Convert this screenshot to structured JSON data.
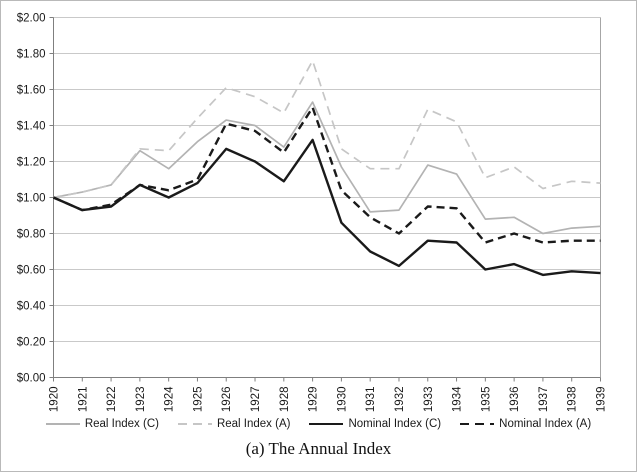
{
  "chart_data": {
    "type": "line",
    "title": "",
    "caption": "(a) The Annual Index",
    "x_categories": [
      "1920",
      "1921",
      "1922",
      "1923",
      "1924",
      "1925",
      "1926",
      "1927",
      "1928",
      "1929",
      "1930",
      "1931",
      "1932",
      "1933",
      "1934",
      "1935",
      "1936",
      "1937",
      "1938",
      "1939"
    ],
    "y_tick_labels": [
      "$0.00",
      "$0.20",
      "$0.40",
      "$0.60",
      "$0.80",
      "$1.00",
      "$1.20",
      "$1.40",
      "$1.60",
      "$1.80",
      "$2.00"
    ],
    "ylim": [
      0,
      2
    ],
    "y_step": 0.2,
    "grid": "horizontal",
    "legend_position": "bottom",
    "colors": {
      "real_gray_solid": "#b3b3b3",
      "real_gray_dashed": "#c6c6c6",
      "nominal_black": "#1a1a1a",
      "gridline": "#c9c9c9",
      "axis": "#7f7f7f",
      "right_border": "#a6a6a6"
    },
    "series": [
      {
        "name": "Real Index (C)",
        "color": "#b3b3b3",
        "dash": "none",
        "width": 1.7,
        "values": [
          1.0,
          1.03,
          1.07,
          1.26,
          1.16,
          1.31,
          1.43,
          1.4,
          1.28,
          1.53,
          1.17,
          0.92,
          0.93,
          1.18,
          1.13,
          0.88,
          0.89,
          0.8,
          0.83,
          0.84
        ]
      },
      {
        "name": "Real Index (A)",
        "color": "#c6c6c6",
        "dash": "9,6",
        "width": 1.7,
        "values": [
          1.0,
          1.03,
          1.07,
          1.27,
          1.26,
          1.44,
          1.61,
          1.56,
          1.47,
          1.76,
          1.27,
          1.16,
          1.16,
          1.49,
          1.42,
          1.11,
          1.17,
          1.05,
          1.09,
          1.08
        ]
      },
      {
        "name": "Nominal Index (C)",
        "color": "#1a1a1a",
        "dash": "none",
        "width": 2.4,
        "values": [
          1.0,
          0.93,
          0.95,
          1.07,
          1.0,
          1.08,
          1.27,
          1.2,
          1.09,
          1.32,
          0.86,
          0.7,
          0.62,
          0.76,
          0.75,
          0.6,
          0.63,
          0.57,
          0.59,
          0.58
        ]
      },
      {
        "name": "Nominal Index (A)",
        "color": "#1a1a1a",
        "dash": "8,5",
        "width": 2.4,
        "values": [
          1.0,
          0.93,
          0.96,
          1.07,
          1.04,
          1.1,
          1.41,
          1.37,
          1.25,
          1.5,
          1.04,
          0.89,
          0.8,
          0.95,
          0.94,
          0.75,
          0.8,
          0.75,
          0.76,
          0.76
        ]
      }
    ]
  }
}
